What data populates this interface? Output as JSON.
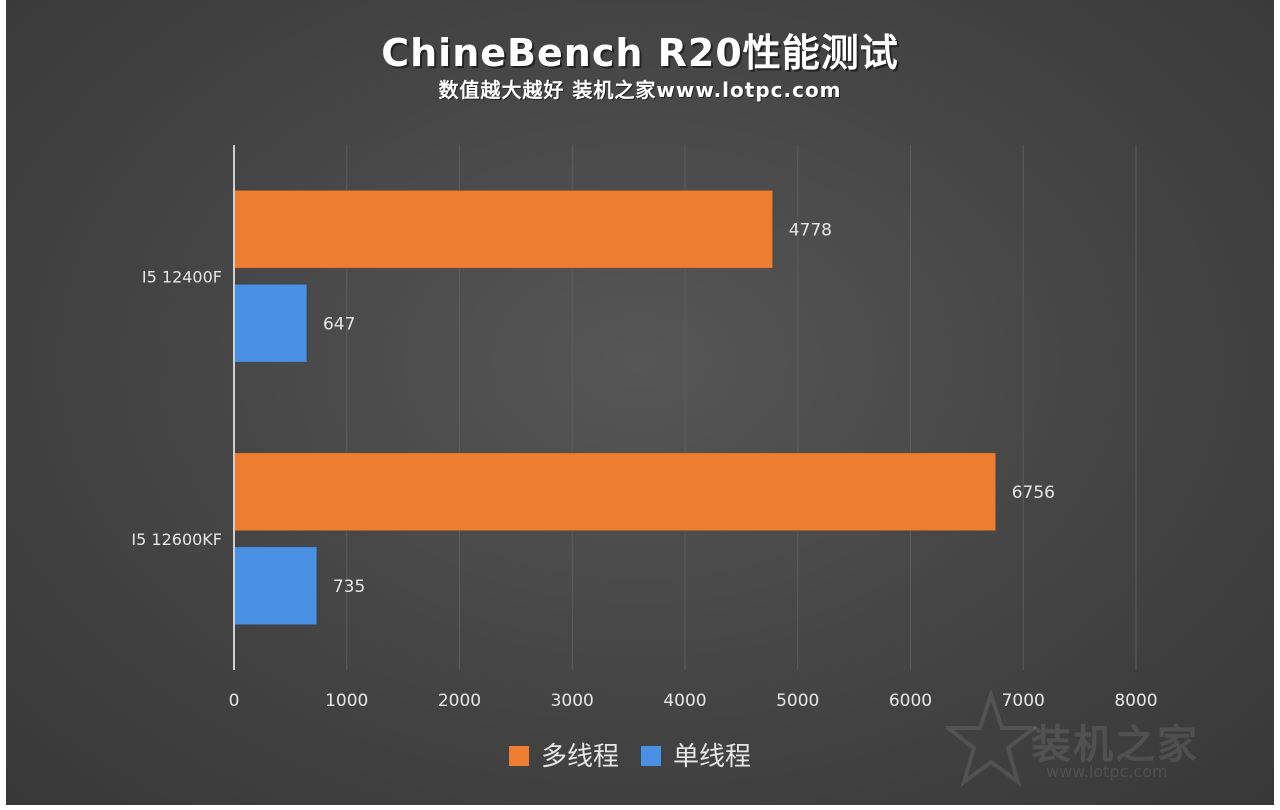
{
  "chart_data": {
    "type": "bar",
    "orientation": "horizontal",
    "title": "ChineBench R20性能测试",
    "subtitle": "数值越大越好 装机之家www.lotpc.com",
    "categories": [
      "I5 12400F",
      "I5 12600KF"
    ],
    "series": [
      {
        "name": "多线程",
        "values": [
          4778,
          6756
        ],
        "color": "#ED7D31"
      },
      {
        "name": "单线程",
        "values": [
          647,
          735
        ],
        "color": "#4A90E2"
      }
    ],
    "xlim": [
      0,
      8000
    ],
    "xticks": [
      "0",
      "1000",
      "2000",
      "3000",
      "4000",
      "5000",
      "6000",
      "7000",
      "8000"
    ],
    "grid": "vertical",
    "legend": "bottom"
  },
  "watermark": {
    "text": "装机之家",
    "url": "www.lotpc.com"
  }
}
